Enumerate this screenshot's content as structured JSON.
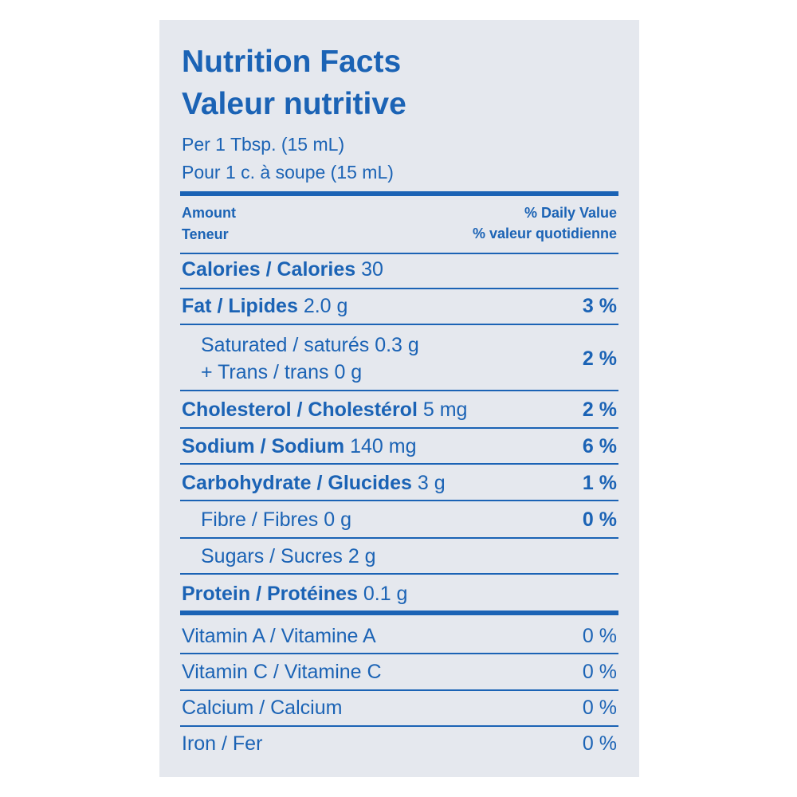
{
  "header": {
    "title_en": "Nutrition Facts",
    "title_fr": "Valeur nutritive",
    "serving_en": "Per 1 Tbsp. (15 mL)",
    "serving_fr": "Pour 1 c. à soupe (15 mL)"
  },
  "columns": {
    "amount_en": "Amount",
    "amount_fr": "Teneur",
    "dv_en": "% Daily Value",
    "dv_fr": "% valeur quotidienne"
  },
  "rows": [
    {
      "label": "Calories / Calories",
      "amount": "30"
    },
    {
      "label": "Fat / Lipides",
      "amount": "2.0 g",
      "dv": "3 %"
    },
    {
      "label": "Saturated / saturés",
      "amount": "0.3 g",
      "label2": "+ Trans / trans",
      "amount2": "0 g",
      "dv": "2 %"
    },
    {
      "label": "Cholesterol / Cholestérol",
      "amount": "5 mg",
      "dv": "2 %"
    },
    {
      "label": "Sodium / Sodium",
      "amount": "140 mg",
      "dv": "6 %"
    },
    {
      "label": "Carbohydrate / Glucides",
      "amount": "3 g",
      "dv": "1 %"
    },
    {
      "label": "Fibre / Fibres",
      "amount": "0 g",
      "dv": "0 %"
    },
    {
      "label": "Sugars / Sucres",
      "amount": "2 g"
    },
    {
      "label": "Protein / Protéines",
      "amount": "0.1 g"
    }
  ],
  "vitamins": [
    {
      "label": "Vitamin A / Vitamine A",
      "dv": "0 %"
    },
    {
      "label": "Vitamin C / Vitamine C",
      "dv": "0 %"
    },
    {
      "label": "Calcium / Calcium",
      "dv": "0 %"
    },
    {
      "label": "Iron / Fer",
      "dv": "0 %"
    }
  ]
}
